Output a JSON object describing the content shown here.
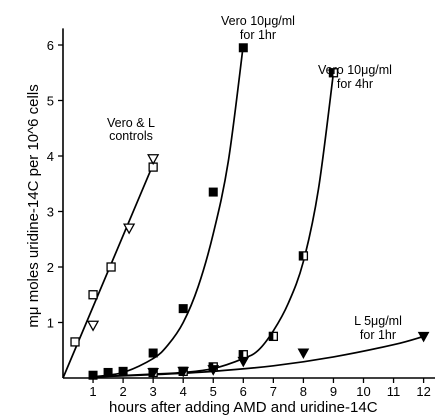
{
  "chart_data": {
    "type": "scatter",
    "xlabel": "hours after adding AMD and uridine-14C",
    "ylabel": "mμ moles uridine-14C per 10^6 cells",
    "xlim": [
      0,
      12.6
    ],
    "ylim": [
      0,
      6.3
    ],
    "x_ticks": [
      "1",
      "2",
      "3",
      "4",
      "5",
      "6",
      "7",
      "8",
      "9",
      "10",
      "11",
      "12"
    ],
    "y_ticks": [
      "1",
      "2",
      "3",
      "4",
      "5",
      "6"
    ],
    "grid": false,
    "series": [
      {
        "name": "Vero & L controls",
        "label_lines": [
          "Vero & L",
          "controls"
        ],
        "marker": "mixed-open",
        "points": [
          {
            "x": 0.4,
            "y": 0.65,
            "m": "open-square"
          },
          {
            "x": 1.0,
            "y": 1.5,
            "m": "open-square"
          },
          {
            "x": 1.0,
            "y": 0.95,
            "m": "open-down-triangle"
          },
          {
            "x": 1.6,
            "y": 2.0,
            "m": "open-square"
          },
          {
            "x": 2.2,
            "y": 2.7,
            "m": "open-down-triangle"
          },
          {
            "x": 3.0,
            "y": 3.8,
            "m": "open-square"
          },
          {
            "x": 3.0,
            "y": 3.95,
            "m": "open-down-triangle"
          }
        ],
        "curve": [
          [
            0,
            0
          ],
          [
            3.0,
            3.85
          ]
        ]
      },
      {
        "name": "Vero 10μg/ml for 1hr",
        "label_lines": [
          "Vero 10μg/ml",
          "for 1hr"
        ],
        "marker": "filled-square",
        "points": [
          {
            "x": 1.0,
            "y": 0.05
          },
          {
            "x": 1.5,
            "y": 0.1
          },
          {
            "x": 2.0,
            "y": 0.12
          },
          {
            "x": 3.0,
            "y": 0.45
          },
          {
            "x": 4.0,
            "y": 1.25
          },
          {
            "x": 5.0,
            "y": 3.35
          },
          {
            "x": 6.0,
            "y": 5.95
          }
        ],
        "curve": [
          [
            1,
            0.02
          ],
          [
            2,
            0.1
          ],
          [
            3,
            0.35
          ],
          [
            3.5,
            0.6
          ],
          [
            4,
            1.0
          ],
          [
            4.5,
            1.65
          ],
          [
            5,
            2.6
          ],
          [
            5.5,
            3.9
          ],
          [
            6,
            6.0
          ]
        ]
      },
      {
        "name": "Vero 10μg/ml for 4hr",
        "label_lines": [
          "Vero 10μg/ml",
          "for 4hr"
        ],
        "marker": "half-filled-square",
        "points": [
          {
            "x": 3.0,
            "y": 0.1
          },
          {
            "x": 4.0,
            "y": 0.12
          },
          {
            "x": 5.0,
            "y": 0.2
          },
          {
            "x": 6.0,
            "y": 0.42
          },
          {
            "x": 7.0,
            "y": 0.75
          },
          {
            "x": 8.0,
            "y": 2.2
          },
          {
            "x": 9.0,
            "y": 5.5
          }
        ],
        "curve": [
          [
            1,
            0.02
          ],
          [
            3,
            0.07
          ],
          [
            4,
            0.1
          ],
          [
            5,
            0.17
          ],
          [
            6,
            0.35
          ],
          [
            6.5,
            0.5
          ],
          [
            7,
            0.85
          ],
          [
            7.5,
            1.35
          ],
          [
            8,
            2.1
          ],
          [
            8.5,
            3.4
          ],
          [
            9,
            5.5
          ]
        ]
      },
      {
        "name": "L 5μg/ml for 1hr",
        "label_lines": [
          "L 5μg/ml",
          "for 1hr"
        ],
        "marker": "filled-down-triangle",
        "points": [
          {
            "x": 3.0,
            "y": 0.1
          },
          {
            "x": 4.0,
            "y": 0.12
          },
          {
            "x": 5.0,
            "y": 0.15
          },
          {
            "x": 6.0,
            "y": 0.3
          },
          {
            "x": 8.0,
            "y": 0.45
          },
          {
            "x": 12.0,
            "y": 0.75
          }
        ],
        "curve": [
          [
            1,
            0.02
          ],
          [
            3,
            0.06
          ],
          [
            5,
            0.12
          ],
          [
            7,
            0.22
          ],
          [
            9,
            0.38
          ],
          [
            11,
            0.6
          ],
          [
            12,
            0.75
          ]
        ]
      }
    ]
  }
}
